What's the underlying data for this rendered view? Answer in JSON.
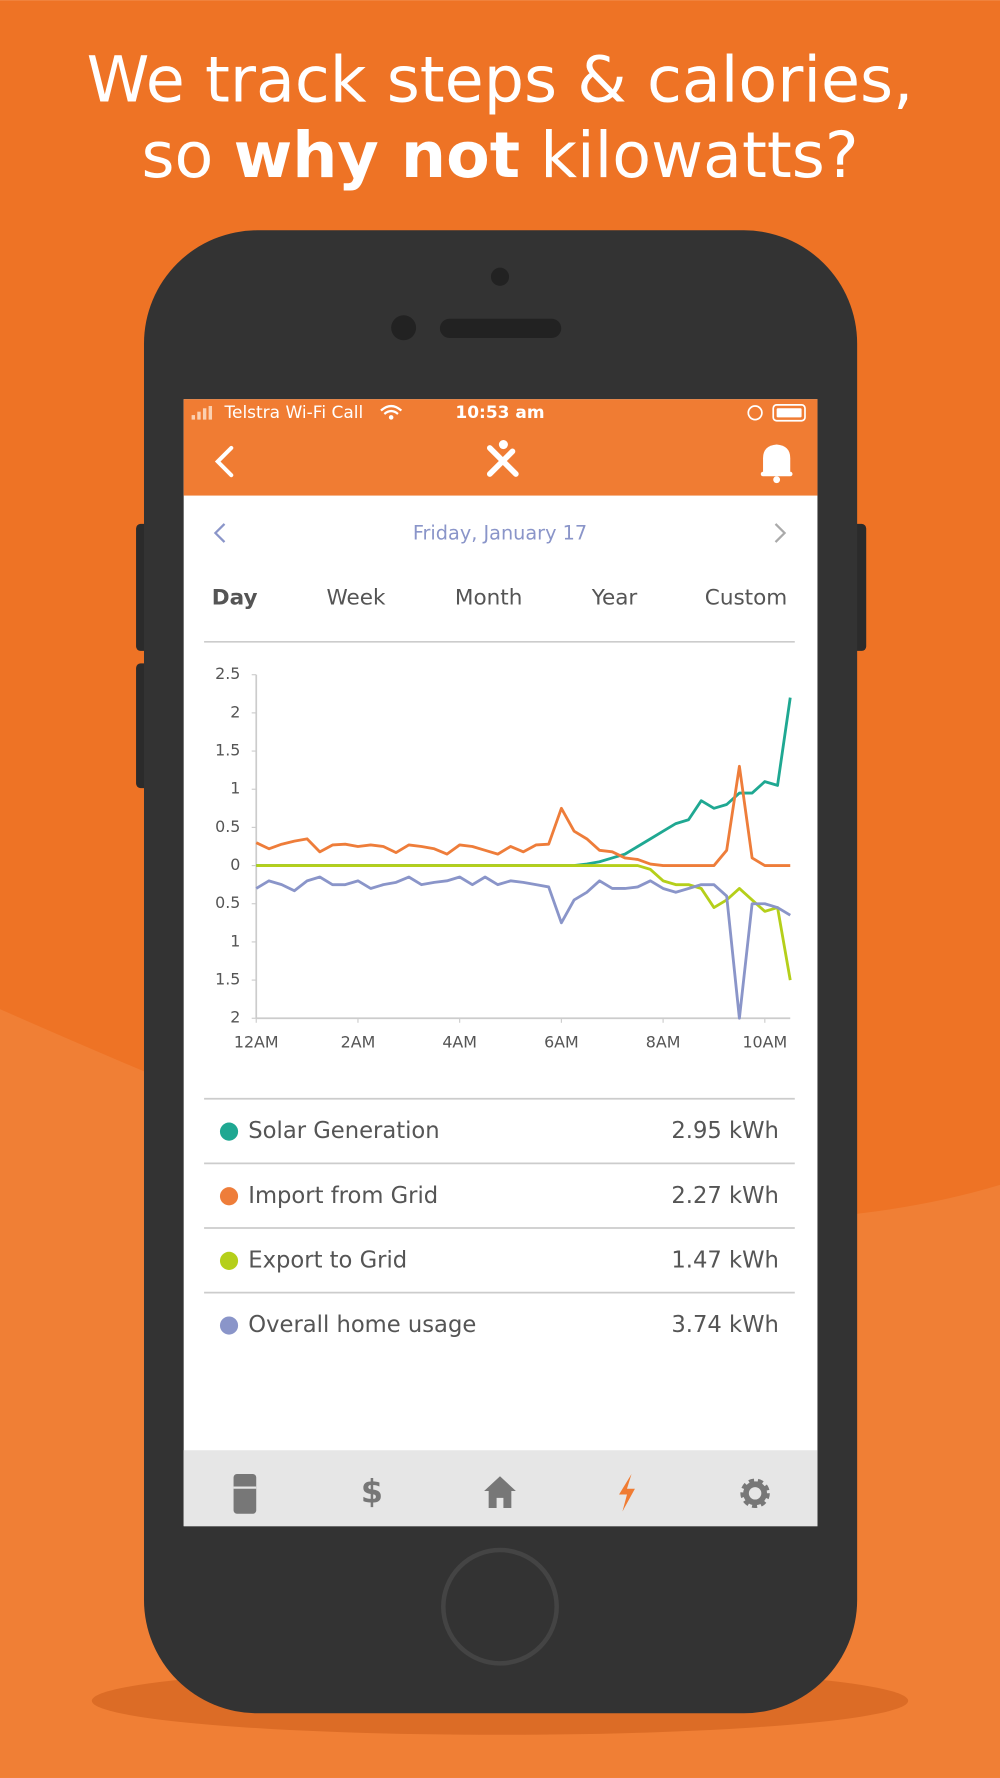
{
  "headline": {
    "line1": "We track steps & calories,",
    "line2_start": "so ",
    "line2_bold": "why not",
    "line2_end": " kilowatts?"
  },
  "status_bar": {
    "carrier": "Telstra Wi-Fi Call",
    "time": "10:53 am"
  },
  "date": "Friday, January 17",
  "tabs": [
    "Day",
    "Week",
    "Month",
    "Year",
    "Custom"
  ],
  "chart_data": {
    "type": "line",
    "x": [
      0,
      0.25,
      0.5,
      0.75,
      1,
      1.25,
      1.5,
      1.75,
      2,
      2.25,
      2.5,
      2.75,
      3,
      3.25,
      3.5,
      3.75,
      4,
      4.25,
      4.5,
      4.75,
      5,
      5.25,
      5.5,
      5.75,
      6,
      6.25,
      6.5,
      6.75,
      7,
      7.25,
      7.5,
      7.75,
      8,
      8.25,
      8.5,
      8.75,
      9,
      9.25,
      9.5,
      9.75,
      10,
      10.25,
      10.5
    ],
    "xlim": [
      0,
      10.5
    ],
    "xticks": [
      {
        "value": 0,
        "label": "12AM"
      },
      {
        "value": 2,
        "label": "2AM"
      },
      {
        "value": 4,
        "label": "4AM"
      },
      {
        "value": 6,
        "label": "6AM"
      },
      {
        "value": 8,
        "label": "8AM"
      },
      {
        "value": 10,
        "label": "10AM"
      }
    ],
    "ylim": [
      -2,
      2.5
    ],
    "yticks": [
      2.5,
      2,
      1.5,
      1,
      0.5,
      0,
      {
        "value": -0.5,
        "label": "0.5"
      },
      {
        "value": -1,
        "label": "1"
      },
      {
        "value": -1.5,
        "label": "1.5"
      },
      {
        "value": -2,
        "label": "2"
      }
    ],
    "grid": false,
    "series": [
      {
        "name": "Solar Generation",
        "color": "#1fa892",
        "total": "2.95 kWh",
        "values": [
          0,
          0,
          0,
          0,
          0,
          0,
          0,
          0,
          0,
          0,
          0,
          0,
          0,
          0,
          0,
          0,
          0,
          0,
          0,
          0,
          0,
          0,
          0,
          0,
          0,
          0,
          0.02,
          0.05,
          0.1,
          0.15,
          0.25,
          0.35,
          0.45,
          0.55,
          0.6,
          0.85,
          0.75,
          0.8,
          0.95,
          0.95,
          1.1,
          1.05,
          2.2
        ]
      },
      {
        "name": "Import from Grid",
        "color": "#ee7d3a",
        "total": "2.27 kWh",
        "values": [
          0.3,
          0.22,
          0.28,
          0.32,
          0.35,
          0.18,
          0.27,
          0.28,
          0.25,
          0.27,
          0.25,
          0.17,
          0.27,
          0.25,
          0.22,
          0.15,
          0.27,
          0.25,
          0.2,
          0.15,
          0.25,
          0.18,
          0.27,
          0.28,
          0.75,
          0.45,
          0.35,
          0.2,
          0.18,
          0.1,
          0.08,
          0.02,
          0,
          0,
          0,
          0,
          0,
          0.2,
          1.3,
          0.1,
          0,
          0,
          0
        ]
      },
      {
        "name": "Export to Grid",
        "color": "#b5cf1a",
        "total": "1.47 kWh",
        "values": [
          0,
          0,
          0,
          0,
          0,
          0,
          0,
          0,
          0,
          0,
          0,
          0,
          0,
          0,
          0,
          0,
          0,
          0,
          0,
          0,
          0,
          0,
          0,
          0,
          0,
          0,
          0,
          0,
          0,
          0,
          0,
          -0.05,
          -0.2,
          -0.25,
          -0.25,
          -0.3,
          -0.55,
          -0.45,
          -0.3,
          -0.45,
          -0.6,
          -0.55,
          -1.5
        ]
      },
      {
        "name": "Overall home usage",
        "color": "#8a95c9",
        "total": "3.74 kWh",
        "values": [
          -0.3,
          -0.2,
          -0.25,
          -0.33,
          -0.2,
          -0.15,
          -0.25,
          -0.25,
          -0.2,
          -0.3,
          -0.25,
          -0.22,
          -0.15,
          -0.25,
          -0.22,
          -0.2,
          -0.15,
          -0.25,
          -0.15,
          -0.25,
          -0.2,
          -0.22,
          -0.25,
          -0.28,
          -0.75,
          -0.45,
          -0.35,
          -0.2,
          -0.3,
          -0.3,
          -0.28,
          -0.2,
          -0.3,
          -0.35,
          -0.3,
          -0.25,
          -0.25,
          -0.4,
          -2,
          -0.5,
          -0.5,
          -0.55,
          -0.65
        ]
      }
    ]
  }
}
